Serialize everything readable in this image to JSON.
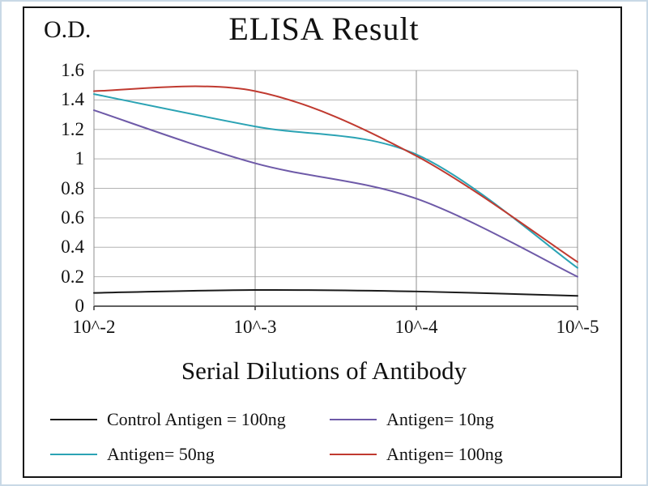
{
  "chart_data": {
    "type": "line",
    "title": "ELISA Result",
    "ylabel": "O.D.",
    "xlabel": "Serial Dilutions  of Antibody",
    "categories": [
      "10^-2",
      "10^-3",
      "10^-4",
      "10^-5"
    ],
    "ylim": [
      0,
      1.6
    ],
    "ytick_step": 0.2,
    "ytick_labels": [
      "0",
      "0.2",
      "0.4",
      "0.6",
      "0.8",
      "1",
      "1.2",
      "1.4",
      "1.6"
    ],
    "grid": true,
    "legend_position": "bottom",
    "series": [
      {
        "name": "Control Antigen = 100ng",
        "color": "#1a1a1a",
        "values": [
          0.09,
          0.11,
          0.1,
          0.07
        ]
      },
      {
        "name": "Antigen= 10ng",
        "color": "#6e5aa8",
        "values": [
          1.33,
          0.97,
          0.73,
          0.2
        ]
      },
      {
        "name": "Antigen= 50ng",
        "color": "#2ba3b4",
        "values": [
          1.44,
          1.22,
          1.03,
          0.26
        ]
      },
      {
        "name": "Antigen= 100ng",
        "color": "#c03a30",
        "values": [
          1.46,
          1.46,
          1.02,
          0.3
        ]
      }
    ]
  }
}
